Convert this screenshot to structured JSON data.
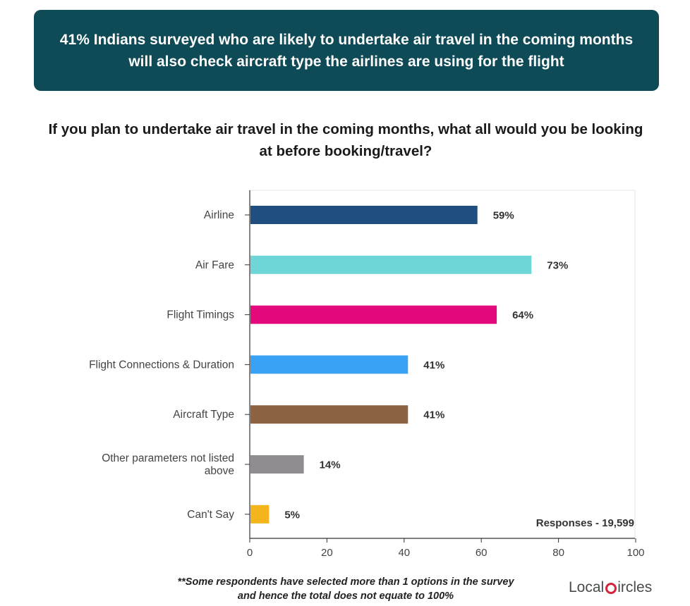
{
  "banner": {
    "text": "41% Indians surveyed who are likely to undertake air travel in the coming months will also check aircraft type the airlines are using for the flight"
  },
  "question": "If you plan to undertake air travel in the coming months, what all would you be looking at before booking/travel?",
  "responses_note": "Responses - 19,599",
  "footnote": {
    "line1": "**Some respondents have selected more than 1 options in the survey",
    "line2": "and hence the total does not equate to 100%"
  },
  "logo": {
    "part1": "Local",
    "part2": "ircles"
  },
  "colors": {
    "banner_bg": "#0f4a57",
    "airline": "#1f4e80",
    "air_fare": "#6fd6d7",
    "flight_timings": "#e3097c",
    "flight_connections": "#3aa2f5",
    "aircraft_type": "#8d6341",
    "other": "#8f8c92",
    "cant_say": "#f4b41b",
    "logo_accent": "#d6243d"
  },
  "chart_data": {
    "type": "bar",
    "orientation": "horizontal",
    "categories": [
      [
        "Airline"
      ],
      [
        "Air Fare"
      ],
      [
        "Flight Timings"
      ],
      [
        "Flight Connections & Duration"
      ],
      [
        "Aircraft Type"
      ],
      [
        "Other parameters not listed",
        "above"
      ],
      [
        "Can't Say"
      ]
    ],
    "values": [
      59,
      73,
      64,
      41,
      41,
      14,
      5
    ],
    "value_labels": [
      "59%",
      "73%",
      "64%",
      "41%",
      "41%",
      "14%",
      "5%"
    ],
    "bar_colors": [
      "#1f4e80",
      "#6fd6d7",
      "#e3097c",
      "#3aa2f5",
      "#8d6341",
      "#8f8c92",
      "#f4b41b"
    ],
    "xlim": [
      0,
      100
    ],
    "xticks": [
      0,
      20,
      40,
      60,
      80,
      100
    ],
    "xtick_labels": [
      "0",
      "20",
      "40",
      "60",
      "80",
      "100"
    ],
    "grid": false,
    "legend": "none"
  }
}
